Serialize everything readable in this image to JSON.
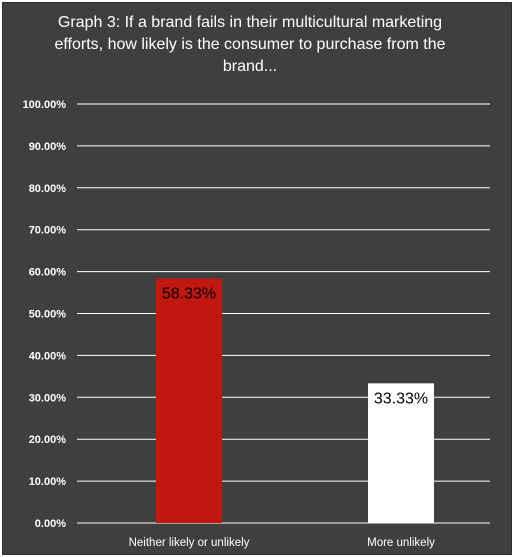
{
  "chart_data": {
    "type": "bar",
    "title": "Graph 3: If a brand fails in their multicultural marketing efforts, how likely is the consumer to purchase from the brand...",
    "categories": [
      "Neither likely or unlikely",
      "More unlikely"
    ],
    "values": [
      58.33,
      33.33
    ],
    "data_labels": [
      "58.33%",
      "33.33%"
    ],
    "bar_colors": [
      "#c0180f",
      "#ffffff"
    ],
    "ylim": [
      0,
      100
    ],
    "yticks": [
      "0.00%",
      "10.00%",
      "20.00%",
      "30.00%",
      "40.00%",
      "50.00%",
      "60.00%",
      "70.00%",
      "80.00%",
      "90.00%",
      "100.00%"
    ],
    "xlabel": "",
    "ylabel": "",
    "grid": true,
    "legend": "none"
  },
  "colors": {
    "background": "#3f3f3f",
    "gridline": "#ffffff",
    "text": "#ffffff"
  }
}
